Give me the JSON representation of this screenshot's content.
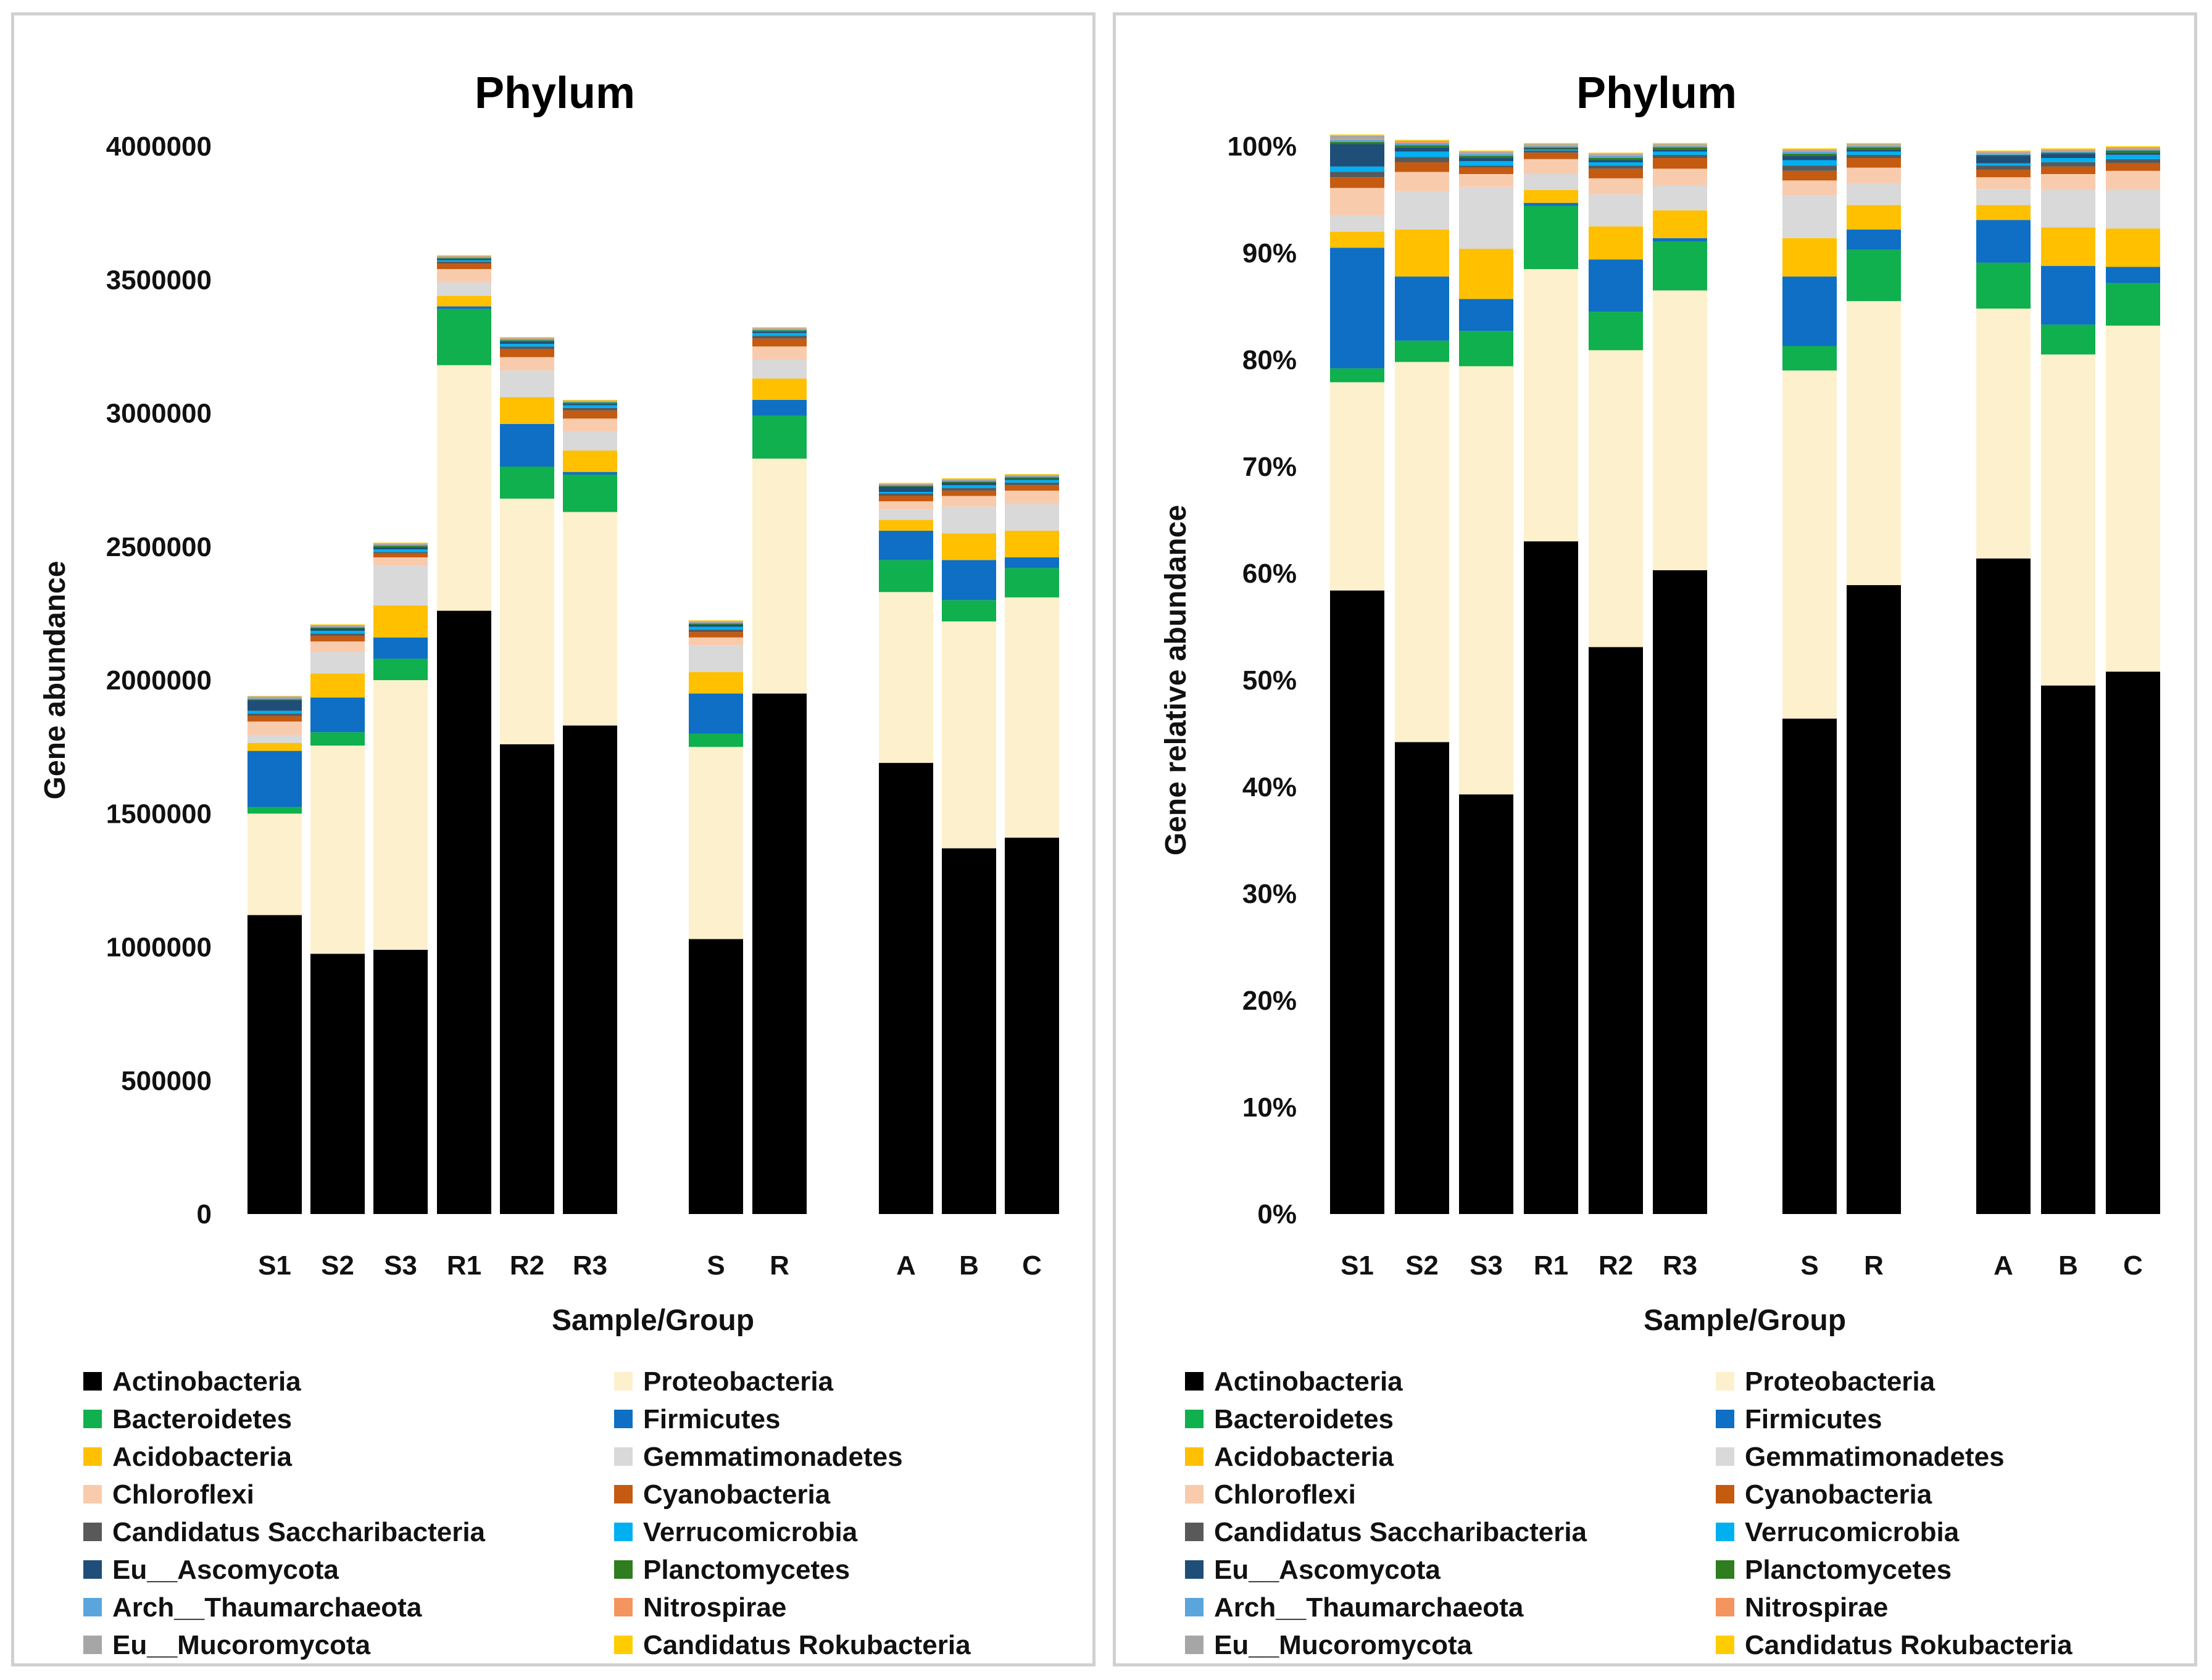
{
  "chart_data": [
    {
      "type": "bar",
      "stacked": true,
      "title": "Phylum",
      "xlabel": "Sample/Group",
      "ylabel": "Gene abundance",
      "ylim": [
        0,
        4000000
      ],
      "yticks": [
        "0",
        "500000",
        "1000000",
        "1500000",
        "2000000",
        "2500000",
        "3000000",
        "3500000",
        "4000000"
      ],
      "categories": [
        "S1",
        "S2",
        "S3",
        "R1",
        "R2",
        "R3",
        "S",
        "R",
        "A",
        "B",
        "C"
      ],
      "series": [
        {
          "name": "Actinobacteria",
          "values": [
            1120000,
            975000,
            990000,
            2260000,
            1760000,
            1830000,
            1030000,
            1950000,
            1690000,
            1370000,
            1410000
          ]
        },
        {
          "name": "Proteobacteria",
          "values": [
            380000,
            780000,
            1010000,
            920000,
            920000,
            800000,
            720000,
            880000,
            640000,
            850000,
            900000
          ]
        },
        {
          "name": "Bacteroidetes",
          "values": [
            25000,
            50000,
            80000,
            210000,
            120000,
            140000,
            50000,
            160000,
            120000,
            80000,
            110000
          ]
        },
        {
          "name": "Firmicutes",
          "values": [
            210000,
            130000,
            80000,
            10000,
            160000,
            10000,
            150000,
            60000,
            110000,
            150000,
            40000
          ]
        },
        {
          "name": "Acidobacteria",
          "values": [
            30000,
            90000,
            120000,
            40000,
            100000,
            80000,
            80000,
            80000,
            40000,
            100000,
            100000
          ]
        },
        {
          "name": "Gemmatimonadetes",
          "values": [
            30000,
            80000,
            150000,
            50000,
            100000,
            70000,
            100000,
            70000,
            40000,
            100000,
            100000
          ]
        },
        {
          "name": "Chloroflexi",
          "values": [
            50000,
            40000,
            30000,
            50000,
            50000,
            50000,
            30000,
            50000,
            30000,
            40000,
            50000
          ]
        },
        {
          "name": "Cyanobacteria",
          "values": [
            20000,
            20000,
            15000,
            20000,
            30000,
            30000,
            20000,
            30000,
            20000,
            20000,
            20000
          ]
        },
        {
          "name": "Candidatus Saccharibacteria",
          "values": [
            10000,
            10000,
            5000,
            8000,
            10000,
            10000,
            10000,
            10000,
            10000,
            10000,
            10000
          ]
        },
        {
          "name": "Verrucomicrobia",
          "values": [
            10000,
            10000,
            10000,
            5000,
            10000,
            10000,
            10000,
            10000,
            5000,
            10000,
            10000
          ]
        },
        {
          "name": "Eu__Ascomycota",
          "values": [
            40000,
            8000,
            8000,
            5000,
            8000,
            5000,
            8000,
            5000,
            20000,
            10000,
            5000
          ]
        },
        {
          "name": "Planctomycetes",
          "values": [
            3000,
            4000,
            5000,
            3000,
            5000,
            5000,
            4000,
            5000,
            3000,
            4000,
            5000
          ]
        },
        {
          "name": "Arch__Thaumarchaeota",
          "values": [
            4000,
            4000,
            5000,
            3000,
            5000,
            3000,
            4000,
            4000,
            4000,
            4000,
            4000
          ]
        },
        {
          "name": "Nitrospirae",
          "values": [
            2000,
            2000,
            2000,
            2000,
            2000,
            2000,
            2000,
            2000,
            2000,
            2000,
            2000
          ]
        },
        {
          "name": "Eu__Mucoromycota",
          "values": [
            5000,
            3000,
            2000,
            3000,
            2000,
            2000,
            3000,
            3000,
            2000,
            3000,
            3000
          ]
        },
        {
          "name": "Candidatus Rokubacteria",
          "values": [
            2000,
            3000,
            3000,
            3000,
            3000,
            3000,
            3000,
            3000,
            3000,
            3000,
            3000
          ]
        }
      ]
    },
    {
      "type": "bar",
      "stacked": true,
      "title": "Phylum",
      "xlabel": "Sample/Group",
      "ylabel": "Gene relative abundance",
      "ylim": [
        0,
        100
      ],
      "yticks": [
        "0%",
        "10%",
        "20%",
        "30%",
        "40%",
        "50%",
        "60%",
        "70%",
        "80%",
        "90%",
        "100%"
      ],
      "categories": [
        "S1",
        "S2",
        "S3",
        "R1",
        "R2",
        "R3",
        "S",
        "R",
        "A",
        "B",
        "C"
      ],
      "series": [
        {
          "name": "Actinobacteria",
          "values": [
            58.4,
            44.2,
            39.3,
            63.0,
            53.1,
            60.3,
            46.4,
            58.9,
            61.4,
            49.5,
            50.8
          ]
        },
        {
          "name": "Proteobacteria",
          "values": [
            19.5,
            35.6,
            40.1,
            25.5,
            27.8,
            26.2,
            32.6,
            26.6,
            23.4,
            31.0,
            32.4
          ]
        },
        {
          "name": "Bacteroidetes",
          "values": [
            1.3,
            2.0,
            3.3,
            5.9,
            3.6,
            4.6,
            2.3,
            4.8,
            4.3,
            2.8,
            4.0
          ]
        },
        {
          "name": "Firmicutes",
          "values": [
            11.3,
            6.0,
            3.0,
            0.3,
            4.9,
            0.3,
            6.5,
            1.9,
            4.0,
            5.5,
            1.5
          ]
        },
        {
          "name": "Acidobacteria",
          "values": [
            1.5,
            4.4,
            4.7,
            1.2,
            3.1,
            2.6,
            3.6,
            2.3,
            1.4,
            3.6,
            3.6
          ]
        },
        {
          "name": "Gemmatimonadetes",
          "values": [
            1.5,
            3.6,
            5.8,
            1.5,
            3.0,
            2.3,
            4.0,
            2.0,
            1.5,
            3.5,
            3.6
          ]
        },
        {
          "name": "Chloroflexi",
          "values": [
            2.6,
            1.8,
            1.2,
            1.4,
            1.5,
            1.6,
            1.4,
            1.5,
            1.1,
            1.5,
            1.8
          ]
        },
        {
          "name": "Cyanobacteria",
          "values": [
            1.0,
            0.9,
            0.6,
            0.6,
            0.9,
            1.0,
            0.9,
            0.9,
            0.7,
            0.7,
            0.7
          ]
        },
        {
          "name": "Candidatus Saccharibacteria",
          "values": [
            0.5,
            0.5,
            0.2,
            0.2,
            0.3,
            0.3,
            0.5,
            0.3,
            0.4,
            0.4,
            0.4
          ]
        },
        {
          "name": "Verrucomicrobia",
          "values": [
            0.5,
            0.5,
            0.4,
            0.1,
            0.3,
            0.3,
            0.5,
            0.3,
            0.2,
            0.4,
            0.4
          ]
        },
        {
          "name": "Eu__Ascomycota",
          "values": [
            2.1,
            0.4,
            0.3,
            0.1,
            0.2,
            0.2,
            0.4,
            0.2,
            0.7,
            0.4,
            0.2
          ]
        },
        {
          "name": "Planctomycetes",
          "values": [
            0.2,
            0.2,
            0.2,
            0.1,
            0.2,
            0.2,
            0.2,
            0.2,
            0.1,
            0.1,
            0.2
          ]
        },
        {
          "name": "Arch__Thaumarchaeota",
          "values": [
            0.2,
            0.2,
            0.2,
            0.1,
            0.2,
            0.1,
            0.2,
            0.1,
            0.1,
            0.1,
            0.1
          ]
        },
        {
          "name": "Nitrospirae",
          "values": [
            0.1,
            0.1,
            0.1,
            0.1,
            0.1,
            0.1,
            0.1,
            0.1,
            0.1,
            0.1,
            0.1
          ]
        },
        {
          "name": "Eu__Mucoromycota",
          "values": [
            0.3,
            0.1,
            0.1,
            0.1,
            0.1,
            0.1,
            0.1,
            0.1,
            0.1,
            0.1,
            0.1
          ]
        },
        {
          "name": "Candidatus Rokubacteria",
          "values": [
            0.1,
            0.1,
            0.1,
            0.1,
            0.1,
            0.1,
            0.1,
            0.1,
            0.1,
            0.1,
            0.1
          ]
        }
      ]
    }
  ],
  "colors": {
    "Actinobacteria": "#000000",
    "Proteobacteria": "#fdf0cc",
    "Bacteroidetes": "#0fb04d",
    "Firmicutes": "#0e6fc4",
    "Acidobacteria": "#ffc000",
    "Gemmatimonadetes": "#d9d9d9",
    "Chloroflexi": "#f9cbad",
    "Cyanobacteria": "#c55a11",
    "Candidatus Saccharibacteria": "#595959",
    "Verrucomicrobia": "#00b0f0",
    "Eu__Ascomycota": "#1f4e79",
    "Planctomycetes": "#2e7d1f",
    "Arch__Thaumarchaeota": "#5aa6dc",
    "Nitrospirae": "#f4945e",
    "Eu__Mucoromycota": "#a6a6a6",
    "Candidatus Rokubacteria": "#ffcc00"
  }
}
